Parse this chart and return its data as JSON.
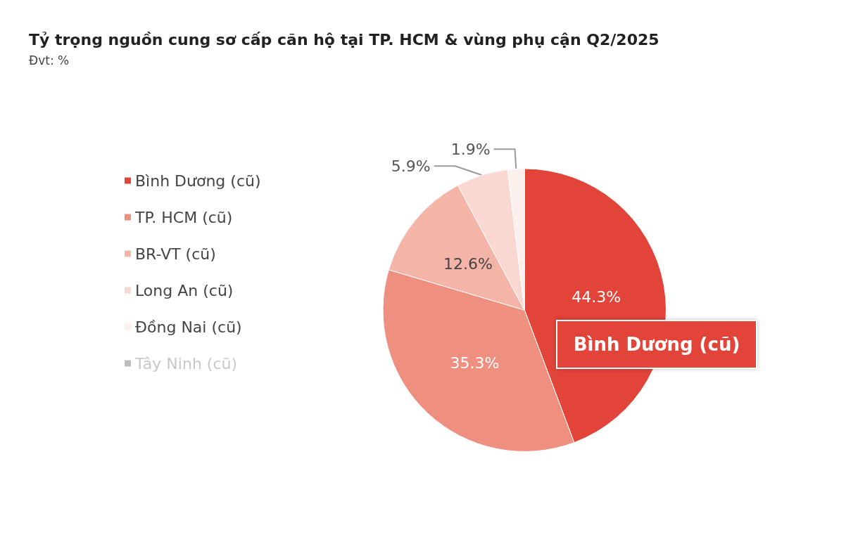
{
  "chart_data": {
    "type": "pie",
    "title": "Tỷ trọng nguồn cung sơ cấp căn hộ tại TP. HCM & vùng phụ cận Q2/2025",
    "subtitle": "Đvt: %",
    "categories": [
      "Bình Dương (cũ)",
      "TP. HCM (cũ)",
      "BR-VT (cũ)",
      "Long An (cũ)",
      "Đồng Nai (cũ)",
      "Tây Ninh (cũ)"
    ],
    "values": [
      44.3,
      35.3,
      12.6,
      5.9,
      1.9,
      null
    ],
    "colors": [
      "#e2443a",
      "#ee8f7f",
      "#f4b4a8",
      "#f9d8d1",
      "#fcf0ed",
      "#bdbdbd"
    ],
    "value_labels": [
      "44.3%",
      "35.3%",
      "12.6%",
      "5.9%",
      "1.9%",
      null
    ],
    "legend": "left",
    "annotations": [
      "Bình Dương (cũ)"
    ]
  }
}
